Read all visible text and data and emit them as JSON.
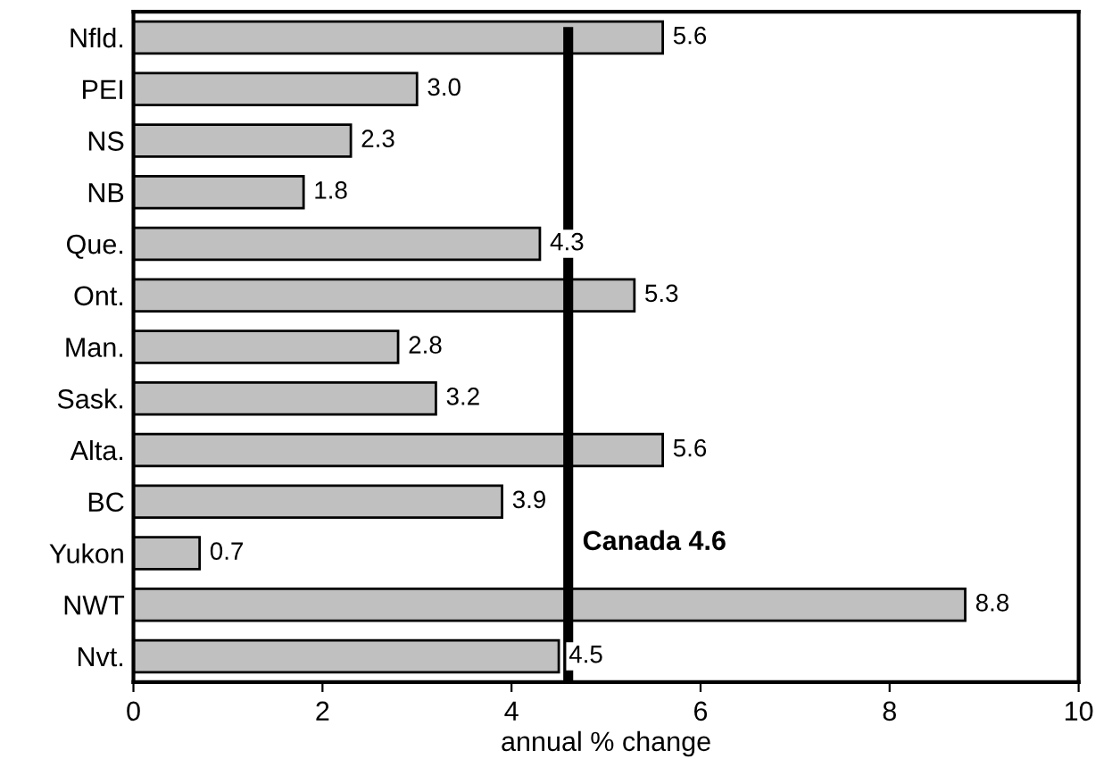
{
  "chart_data": {
    "type": "bar",
    "orientation": "horizontal",
    "xlabel": "annual % change",
    "categories": [
      "Nfld.",
      "PEI",
      "NS",
      "NB",
      "Que.",
      "Ont.",
      "Man.",
      "Sask.",
      "Alta.",
      "BC",
      "Yukon",
      "NWT",
      "Nvt."
    ],
    "values": [
      5.6,
      3.0,
      2.3,
      1.8,
      4.3,
      5.3,
      2.8,
      3.2,
      5.6,
      3.9,
      0.7,
      8.8,
      4.5
    ],
    "value_labels": [
      "5.6",
      "3.0",
      "2.3",
      "1.8",
      "4.3",
      "5.3",
      "2.8",
      "3.2",
      "5.6",
      "3.9",
      "0.7",
      "8.8",
      "4.5"
    ],
    "color": "#c0c0c0",
    "xlim": [
      0,
      10
    ],
    "xticks": [
      0,
      2,
      4,
      6,
      8,
      10
    ],
    "grid": false,
    "legend": false,
    "ref_lines": [
      {
        "axis": "x",
        "value": 4.6,
        "label": "Canada 4.6",
        "color": "#000000",
        "line_style": "solid"
      }
    ]
  }
}
